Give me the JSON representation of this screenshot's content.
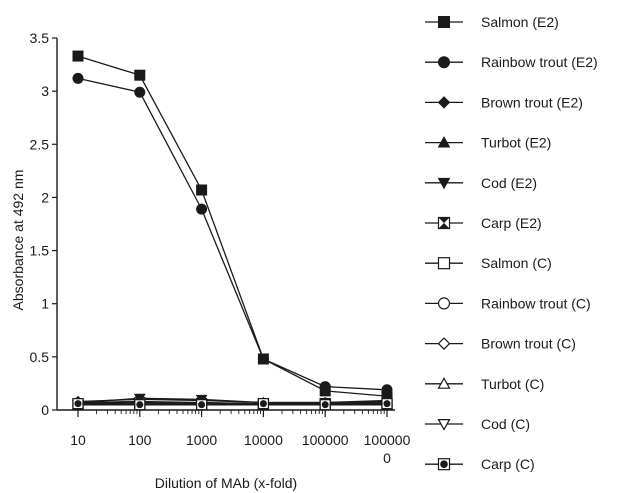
{
  "chart_data": {
    "type": "line",
    "title": "",
    "xlabel": "Dilution of MAb (x-fold)",
    "ylabel": "Absorbance at  492 nm",
    "x_scale": "log",
    "x_ticks": [
      10,
      100,
      1000,
      10000,
      100000,
      1000000
    ],
    "x_tick_labels": [
      [
        "10"
      ],
      [
        "100"
      ],
      [
        "1000"
      ],
      [
        "10000"
      ],
      [
        "100000"
      ],
      [
        "100000",
        "0"
      ]
    ],
    "x": [
      10,
      100,
      1000,
      10000,
      100000,
      1000000
    ],
    "ylim": [
      0,
      3.5
    ],
    "y_ticks": [
      0,
      0.5,
      1,
      1.5,
      2,
      2.5,
      3,
      3.5
    ],
    "y_tick_labels": [
      "0",
      "0.5",
      "1",
      "1.5",
      "2",
      "2.5",
      "3",
      "3.5"
    ],
    "grid": false,
    "legend_position": "right",
    "series": [
      {
        "name": "Salmon (E2)",
        "marker": "square-filled",
        "values": [
          3.33,
          3.15,
          2.07,
          0.48,
          0.18,
          0.13
        ]
      },
      {
        "name": "Rainbow trout (E2)",
        "marker": "circle-filled",
        "values": [
          3.12,
          2.99,
          1.89,
          0.48,
          0.22,
          0.19
        ]
      },
      {
        "name": "Brown trout (E2)",
        "marker": "diamond-filled",
        "values": [
          0.08,
          0.1,
          0.09,
          0.07,
          0.07,
          0.08
        ]
      },
      {
        "name": "Turbot (E2)",
        "marker": "triangle-up-filled",
        "values": [
          0.07,
          0.08,
          0.07,
          0.06,
          0.06,
          0.07
        ]
      },
      {
        "name": "Cod (E2)",
        "marker": "triangle-down-filled",
        "values": [
          0.07,
          0.11,
          0.1,
          0.07,
          0.07,
          0.09
        ]
      },
      {
        "name": "Carp (E2)",
        "marker": "square-x",
        "values": [
          0.06,
          0.07,
          0.06,
          0.05,
          0.06,
          0.06
        ]
      },
      {
        "name": "Salmon (C)",
        "marker": "square-open",
        "values": [
          0.05,
          0.05,
          0.05,
          0.05,
          0.05,
          0.05
        ]
      },
      {
        "name": "Rainbow trout (C)",
        "marker": "circle-open",
        "values": [
          0.05,
          0.06,
          0.05,
          0.05,
          0.05,
          0.05
        ]
      },
      {
        "name": "Brown trout (C)",
        "marker": "diamond-open",
        "values": [
          0.05,
          0.05,
          0.05,
          0.05,
          0.05,
          0.05
        ]
      },
      {
        "name": "Turbot (C)",
        "marker": "triangle-up-open",
        "values": [
          0.05,
          0.05,
          0.05,
          0.05,
          0.05,
          0.05
        ]
      },
      {
        "name": "Cod (C)",
        "marker": "triangle-down-open",
        "values": [
          0.05,
          0.05,
          0.05,
          0.05,
          0.05,
          0.05
        ]
      },
      {
        "name": "Carp (C)",
        "marker": "circle-in-square",
        "values": [
          0.06,
          0.05,
          0.05,
          0.06,
          0.05,
          0.06
        ]
      }
    ],
    "colors": {
      "line": "#1a1a1a",
      "background": "#ffffff"
    }
  }
}
